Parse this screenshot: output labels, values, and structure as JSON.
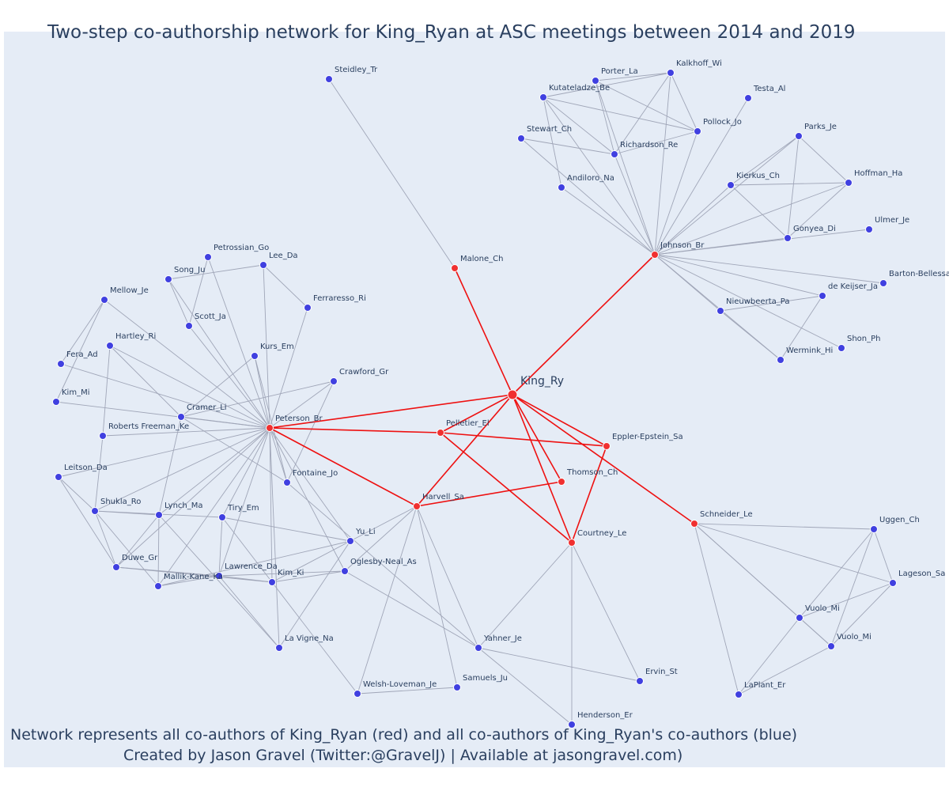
{
  "title": "Two-step co-authorship network for King_Ryan at ASC meetings between 2014 and 2019",
  "footer": {
    "line1": "Network represents all co-authors of King_Ryan (red) and all co-authors of King_Ryan's co-authors (blue)",
    "line2": "Created by Jason Gravel (Twitter:@GravelJ) | Available at jasongravel.com)"
  },
  "colors": {
    "red_node": "#f03030",
    "blue_node": "#4040e0",
    "red_edge": "#ee1111",
    "gray_edge": "#a0a6b8",
    "background": "#e5ecf6"
  },
  "nodes": [
    {
      "id": "King_Ry",
      "label": "King_Ry",
      "group": "main"
    },
    {
      "id": "Malone_Ch",
      "label": "Malone_Ch",
      "group": "red"
    },
    {
      "id": "Johnson_Br",
      "label": "Johnson_Br",
      "group": "red"
    },
    {
      "id": "Peterson_Br",
      "label": "Peterson_Br",
      "group": "red"
    },
    {
      "id": "Pelletier_El",
      "label": "Pelletier_El",
      "group": "red"
    },
    {
      "id": "Eppler-Epstein_Sa",
      "label": "Eppler-Epstein_Sa",
      "group": "red"
    },
    {
      "id": "Thomson_Ch",
      "label": "Thomson_Ch",
      "group": "red"
    },
    {
      "id": "Harvell_Sa",
      "label": "Harvell_Sa",
      "group": "red"
    },
    {
      "id": "Courtney_Le",
      "label": "Courtney_Le",
      "group": "red"
    },
    {
      "id": "Schneider_Le",
      "label": "Schneider_Le",
      "group": "red"
    },
    {
      "id": "Steidley_Tr",
      "label": "Steidley_Tr",
      "group": "blue"
    },
    {
      "id": "Porter_La",
      "label": "Porter_La",
      "group": "blue"
    },
    {
      "id": "Kalkhoff_Wi",
      "label": "Kalkhoff_Wi",
      "group": "blue"
    },
    {
      "id": "Kutateladze_Be",
      "label": "Kutateladze_Be",
      "group": "blue"
    },
    {
      "id": "Testa_Al",
      "label": "Testa_Al",
      "group": "blue"
    },
    {
      "id": "Pollock_Jo",
      "label": "Pollock_Jo",
      "group": "blue"
    },
    {
      "id": "Stewart_Ch",
      "label": "Stewart_Ch",
      "group": "blue"
    },
    {
      "id": "Richardson_Re",
      "label": "Richardson_Re",
      "group": "blue"
    },
    {
      "id": "Parks_Je",
      "label": "Parks_Je",
      "group": "blue"
    },
    {
      "id": "Hoffman_Ha",
      "label": "Hoffman_Ha",
      "group": "blue"
    },
    {
      "id": "Kierkus_Ch",
      "label": "Kierkus_Ch",
      "group": "blue"
    },
    {
      "id": "Andiloro_Na",
      "label": "Andiloro_Na",
      "group": "blue"
    },
    {
      "id": "Ulmer_Je",
      "label": "Ulmer_Je",
      "group": "blue"
    },
    {
      "id": "Gonyea_Di",
      "label": "Gonyea_Di",
      "group": "blue"
    },
    {
      "id": "Barton-Bellessa",
      "label": "Barton-Bellessa",
      "group": "blue"
    },
    {
      "id": "de_Keijser_Ja",
      "label": "de Keijser_Ja",
      "group": "blue"
    },
    {
      "id": "Nieuwbeerta_Pa",
      "label": "Nieuwbeerta_Pa",
      "group": "blue"
    },
    {
      "id": "Shon_Ph",
      "label": "Shon_Ph",
      "group": "blue"
    },
    {
      "id": "Wermink_Hi",
      "label": "Wermink_Hi",
      "group": "blue"
    },
    {
      "id": "Petrossian_Go",
      "label": "Petrossian_Go",
      "group": "blue"
    },
    {
      "id": "Lee_Da",
      "label": "Lee_Da",
      "group": "blue"
    },
    {
      "id": "Song_Ju",
      "label": "Song_Ju",
      "group": "blue"
    },
    {
      "id": "Mellow_Je",
      "label": "Mellow_Je",
      "group": "blue"
    },
    {
      "id": "Ferraresso_Ri",
      "label": "Ferraresso_Ri",
      "group": "blue"
    },
    {
      "id": "Scott_Ja",
      "label": "Scott_Ja",
      "group": "blue"
    },
    {
      "id": "Hartley_Ri",
      "label": "Hartley_Ri",
      "group": "blue"
    },
    {
      "id": "Kurs_Em",
      "label": "Kurs_Em",
      "group": "blue"
    },
    {
      "id": "Fera_Ad",
      "label": "Fera_Ad",
      "group": "blue"
    },
    {
      "id": "Crawford_Gr",
      "label": "Crawford_Gr",
      "group": "blue"
    },
    {
      "id": "Kim_Mi",
      "label": "Kim_Mi",
      "group": "blue"
    },
    {
      "id": "Cramer_Li",
      "label": "Cramer_Li",
      "group": "blue"
    },
    {
      "id": "Roberts_Freeman_Ke",
      "label": "Roberts Freeman_Ke",
      "group": "blue"
    },
    {
      "id": "Leitson_Da",
      "label": "Leitson_Da",
      "group": "blue"
    },
    {
      "id": "Fontaine_Jo",
      "label": "Fontaine_Jo",
      "group": "blue"
    },
    {
      "id": "Shukla_Ro",
      "label": "Shukla_Ro",
      "group": "blue"
    },
    {
      "id": "Lynch_Ma",
      "label": "Lynch_Ma",
      "group": "blue"
    },
    {
      "id": "Tiry_Em",
      "label": "Tiry_Em",
      "group": "blue"
    },
    {
      "id": "Yu_Li",
      "label": "Yu_Li",
      "group": "blue"
    },
    {
      "id": "Duwe_Gr",
      "label": "Duwe_Gr",
      "group": "blue"
    },
    {
      "id": "Lawrence_Da",
      "label": "Lawrence_Da",
      "group": "blue"
    },
    {
      "id": "Oglesby-Neal_As",
      "label": "Oglesby-Neal_As",
      "group": "blue"
    },
    {
      "id": "Mallik-Kane_Ka",
      "label": "Mallik-Kane_Ka",
      "group": "blue"
    },
    {
      "id": "Kim_Ki",
      "label": "Kim_Ki",
      "group": "blue"
    },
    {
      "id": "La_Vigne_Na",
      "label": "La Vigne_Na",
      "group": "blue"
    },
    {
      "id": "Yahner_Je",
      "label": "Yahner_Je",
      "group": "blue"
    },
    {
      "id": "Ervin_St",
      "label": "Ervin_St",
      "group": "blue"
    },
    {
      "id": "Welsh-Loveman_Je",
      "label": "Welsh-Loveman_Je",
      "group": "blue"
    },
    {
      "id": "Samuels_Ju",
      "label": "Samuels_Ju",
      "group": "blue"
    },
    {
      "id": "Henderson_Er",
      "label": "Henderson_Er",
      "group": "blue"
    },
    {
      "id": "Uggen_Ch",
      "label": "Uggen_Ch",
      "group": "blue"
    },
    {
      "id": "Lageson_Sa",
      "label": "Lageson_Sa",
      "group": "blue"
    },
    {
      "id": "Vuolo_Mi",
      "label": "Vuolo_Mi",
      "group": "blue"
    },
    {
      "id": "Vuolo_Mi_2",
      "label": "Vuolo_Mi",
      "group": "blue"
    },
    {
      "id": "LaPlant_Er",
      "label": "LaPlant_Er",
      "group": "blue"
    }
  ],
  "edges_red": [
    [
      "King_Ry",
      "Malone_Ch"
    ],
    [
      "King_Ry",
      "Johnson_Br"
    ],
    [
      "King_Ry",
      "Peterson_Br"
    ],
    [
      "King_Ry",
      "Pelletier_El"
    ],
    [
      "King_Ry",
      "Eppler-Epstein_Sa"
    ],
    [
      "King_Ry",
      "Thomson_Ch"
    ],
    [
      "King_Ry",
      "Harvell_Sa"
    ],
    [
      "King_Ry",
      "Courtney_Le"
    ],
    [
      "King_Ry",
      "Schneider_Le"
    ],
    [
      "Peterson_Br",
      "Pelletier_El"
    ],
    [
      "Peterson_Br",
      "Harvell_Sa"
    ],
    [
      "Pelletier_El",
      "Eppler-Epstein_Sa"
    ],
    [
      "Pelletier_El",
      "Courtney_Le"
    ],
    [
      "Harvell_Sa",
      "Thomson_Ch"
    ],
    [
      "Eppler-Epstein_Sa",
      "Courtney_Le"
    ]
  ],
  "edges_gray": [
    [
      "Malone_Ch",
      "Steidley_Tr"
    ],
    [
      "Johnson_Br",
      "Porter_La"
    ],
    [
      "Johnson_Br",
      "Kalkhoff_Wi"
    ],
    [
      "Johnson_Br",
      "Kutateladze_Be"
    ],
    [
      "Johnson_Br",
      "Testa_Al"
    ],
    [
      "Johnson_Br",
      "Pollock_Jo"
    ],
    [
      "Johnson_Br",
      "Stewart_Ch"
    ],
    [
      "Johnson_Br",
      "Richardson_Re"
    ],
    [
      "Johnson_Br",
      "Andiloro_Na"
    ],
    [
      "Johnson_Br",
      "Parks_Je"
    ],
    [
      "Johnson_Br",
      "Hoffman_Ha"
    ],
    [
      "Johnson_Br",
      "Kierkus_Ch"
    ],
    [
      "Johnson_Br",
      "Gonyea_Di"
    ],
    [
      "Johnson_Br",
      "Ulmer_Je"
    ],
    [
      "Johnson_Br",
      "Barton-Bellessa"
    ],
    [
      "Johnson_Br",
      "de_Keijser_Ja"
    ],
    [
      "Johnson_Br",
      "Nieuwbeerta_Pa"
    ],
    [
      "Johnson_Br",
      "Wermink_Hi"
    ],
    [
      "Johnson_Br",
      "Shon_Ph"
    ],
    [
      "Porter_La",
      "Kalkhoff_Wi"
    ],
    [
      "Porter_La",
      "Richardson_Re"
    ],
    [
      "Porter_La",
      "Pollock_Jo"
    ],
    [
      "Kalkhoff_Wi",
      "Kutateladze_Be"
    ],
    [
      "Kalkhoff_Wi",
      "Richardson_Re"
    ],
    [
      "Kalkhoff_Wi",
      "Pollock_Jo"
    ],
    [
      "Kutateladze_Be",
      "Richardson_Re"
    ],
    [
      "Kutateladze_Be",
      "Pollock_Jo"
    ],
    [
      "Kutateladze_Be",
      "Andiloro_Na"
    ],
    [
      "Richardson_Re",
      "Pollock_Jo"
    ],
    [
      "Stewart_Ch",
      "Richardson_Re"
    ],
    [
      "Parks_Je",
      "Kierkus_Ch"
    ],
    [
      "Parks_Je",
      "Gonyea_Di"
    ],
    [
      "Parks_Je",
      "Hoffman_Ha"
    ],
    [
      "Kierkus_Ch",
      "Hoffman_Ha"
    ],
    [
      "Kierkus_Ch",
      "Gonyea_Di"
    ],
    [
      "Hoffman_Ha",
      "Gonyea_Di"
    ],
    [
      "de_Keijser_Ja",
      "Nieuwbeerta_Pa"
    ],
    [
      "de_Keijser_Ja",
      "Wermink_Hi"
    ],
    [
      "Nieuwbeerta_Pa",
      "Wermink_Hi"
    ],
    [
      "Peterson_Br",
      "Petrossian_Go"
    ],
    [
      "Peterson_Br",
      "Lee_Da"
    ],
    [
      "Peterson_Br",
      "Song_Ju"
    ],
    [
      "Peterson_Br",
      "Mellow_Je"
    ],
    [
      "Peterson_Br",
      "Ferraresso_Ri"
    ],
    [
      "Peterson_Br",
      "Scott_Ja"
    ],
    [
      "Peterson_Br",
      "Hartley_Ri"
    ],
    [
      "Peterson_Br",
      "Kurs_Em"
    ],
    [
      "Peterson_Br",
      "Fera_Ad"
    ],
    [
      "Peterson_Br",
      "Crawford_Gr"
    ],
    [
      "Peterson_Br",
      "Kim_Mi"
    ],
    [
      "Peterson_Br",
      "Cramer_Li"
    ],
    [
      "Peterson_Br",
      "Roberts_Freeman_Ke"
    ],
    [
      "Peterson_Br",
      "Leitson_Da"
    ],
    [
      "Peterson_Br",
      "Fontaine_Jo"
    ],
    [
      "Peterson_Br",
      "Shukla_Ro"
    ],
    [
      "Peterson_Br",
      "Lynch_Ma"
    ],
    [
      "Peterson_Br",
      "Tiry_Em"
    ],
    [
      "Peterson_Br",
      "Yu_Li"
    ],
    [
      "Peterson_Br",
      "Duwe_Gr"
    ],
    [
      "Peterson_Br",
      "Lawrence_Da"
    ],
    [
      "Peterson_Br",
      "Oglesby-Neal_As"
    ],
    [
      "Peterson_Br",
      "Mallik-Kane_Ka"
    ],
    [
      "Peterson_Br",
      "Kim_Ki"
    ],
    [
      "Peterson_Br",
      "La_Vigne_Na"
    ],
    [
      "Petrossian_Go",
      "Scott_Ja"
    ],
    [
      "Song_Ju",
      "Lee_Da"
    ],
    [
      "Song_Ju",
      "Scott_Ja"
    ],
    [
      "Lee_Da",
      "Ferraresso_Ri"
    ],
    [
      "Mellow_Je",
      "Fera_Ad"
    ],
    [
      "Mellow_Je",
      "Kim_Mi"
    ],
    [
      "Hartley_Ri",
      "Cramer_Li"
    ],
    [
      "Hartley_Ri",
      "Roberts_Freeman_Ke"
    ],
    [
      "Kurs_Em",
      "Cramer_Li"
    ],
    [
      "Kurs_Em",
      "Fontaine_Jo"
    ],
    [
      "Crawford_Gr",
      "Cramer_Li"
    ],
    [
      "Crawford_Gr",
      "Fontaine_Jo"
    ],
    [
      "Cramer_Li",
      "Fontaine_Jo"
    ],
    [
      "Cramer_Li",
      "Lynch_Ma"
    ],
    [
      "Roberts_Freeman_Ke",
      "Shukla_Ro"
    ],
    [
      "Leitson_Da",
      "Shukla_Ro"
    ],
    [
      "Leitson_Da",
      "Duwe_Gr"
    ],
    [
      "Shukla_Ro",
      "Lynch_Ma"
    ],
    [
      "Shukla_Ro",
      "Duwe_Gr"
    ],
    [
      "Shukla_Ro",
      "Tiry_Em"
    ],
    [
      "Shukla_Ro",
      "Mallik-Kane_Ka"
    ],
    [
      "Lynch_Ma",
      "Duwe_Gr"
    ],
    [
      "Lynch_Ma",
      "Mallik-Kane_Ka"
    ],
    [
      "Lynch_Ma",
      "La_Vigne_Na"
    ],
    [
      "Tiry_Em",
      "Lawrence_Da"
    ],
    [
      "Tiry_Em",
      "Kim_Ki"
    ],
    [
      "Tiry_Em",
      "Yu_Li"
    ],
    [
      "Duwe_Gr",
      "Lawrence_Da"
    ],
    [
      "Duwe_Gr",
      "Kim_Ki"
    ],
    [
      "Mallik-Kane_Ka",
      "Lawrence_Da"
    ],
    [
      "Mallik-Kane_Ka",
      "Yu_Li"
    ],
    [
      "Lawrence_Da",
      "Kim_Ki"
    ],
    [
      "Lawrence_Da",
      "Oglesby-Neal_As"
    ],
    [
      "Lawrence_Da",
      "La_Vigne_Na"
    ],
    [
      "Kim_Ki",
      "Oglesby-Neal_As"
    ],
    [
      "Kim_Ki",
      "Yu_Li"
    ],
    [
      "Kim_Ki",
      "Welsh-Loveman_Je"
    ],
    [
      "Yu_Li",
      "La_Vigne_Na"
    ],
    [
      "Oglesby-Neal_As",
      "Yahner_Je"
    ],
    [
      "Fontaine_Jo",
      "Yahner_Je"
    ],
    [
      "Harvell_Sa",
      "Yu_Li"
    ],
    [
      "Harvell_Sa",
      "Oglesby-Neal_As"
    ],
    [
      "Harvell_Sa",
      "Welsh-Loveman_Je"
    ],
    [
      "Harvell_Sa",
      "Samuels_Ju"
    ],
    [
      "Harvell_Sa",
      "Yahner_Je"
    ],
    [
      "Welsh-Loveman_Je",
      "Samuels_Ju"
    ],
    [
      "Courtney_Le",
      "Yahner_Je"
    ],
    [
      "Courtney_Le",
      "Ervin_St"
    ],
    [
      "Courtney_Le",
      "Henderson_Er"
    ],
    [
      "Yahner_Je",
      "Ervin_St"
    ],
    [
      "Yahner_Je",
      "Henderson_Er"
    ],
    [
      "Schneider_Le",
      "Uggen_Ch"
    ],
    [
      "Schneider_Le",
      "Lageson_Sa"
    ],
    [
      "Schneider_Le",
      "Vuolo_Mi"
    ],
    [
      "Schneider_Le",
      "Vuolo_Mi_2"
    ],
    [
      "Schneider_Le",
      "LaPlant_Er"
    ],
    [
      "Uggen_Ch",
      "Lageson_Sa"
    ],
    [
      "Uggen_Ch",
      "Vuolo_Mi"
    ],
    [
      "Uggen_Ch",
      "Vuolo_Mi_2"
    ],
    [
      "Lageson_Sa",
      "Vuolo_Mi"
    ],
    [
      "Lageson_Sa",
      "Vuolo_Mi_2"
    ],
    [
      "Vuolo_Mi",
      "Vuolo_Mi_2"
    ],
    [
      "Vuolo_Mi",
      "LaPlant_Er"
    ],
    [
      "Vuolo_Mi_2",
      "LaPlant_Er"
    ]
  ]
}
